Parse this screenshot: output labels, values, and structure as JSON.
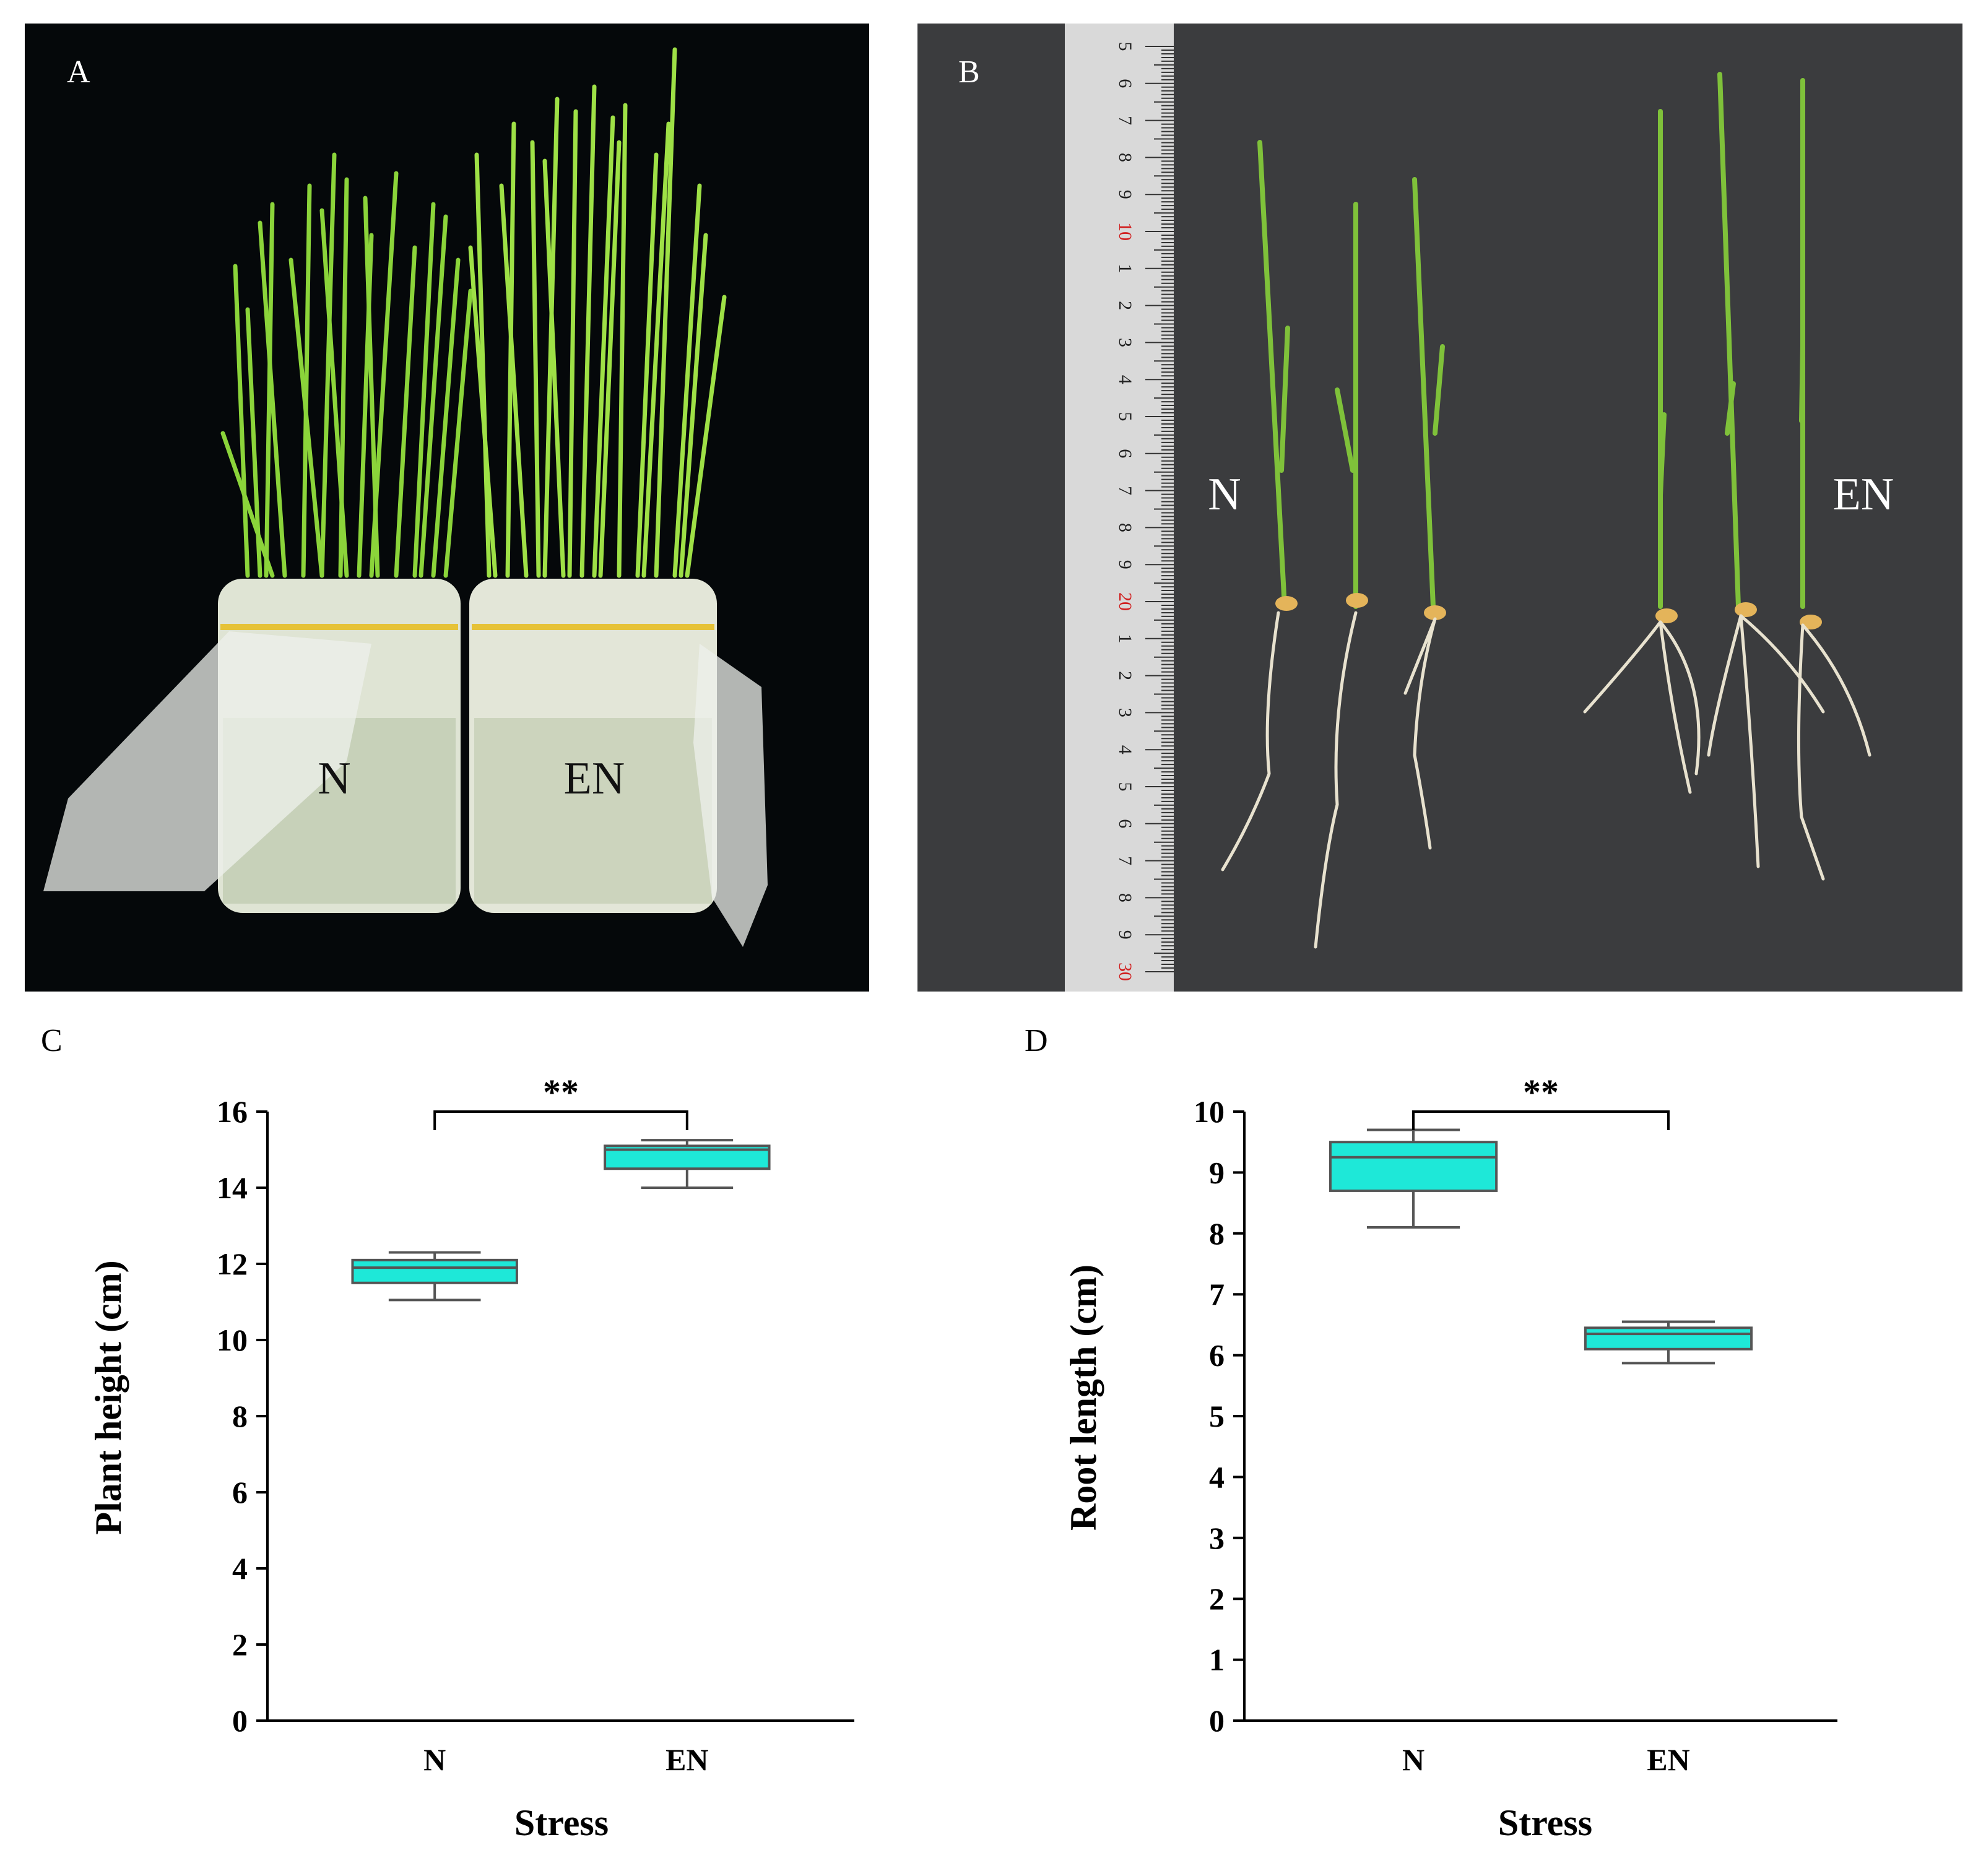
{
  "panels": {
    "A": {
      "letter": "A",
      "pot_labels": [
        "N",
        "EN"
      ]
    },
    "B": {
      "letter": "B",
      "group_labels": [
        "N",
        "EN"
      ],
      "ruler_labels": [
        "5",
        "6",
        "7",
        "8",
        "9",
        "10",
        "1",
        "2",
        "3",
        "4",
        "5",
        "6",
        "7",
        "8",
        "9",
        "20",
        "1",
        "2",
        "3",
        "4",
        "5",
        "6",
        "7",
        "8",
        "9",
        "30"
      ]
    },
    "C": {
      "letter": "C"
    },
    "D": {
      "letter": "D"
    }
  },
  "colors": {
    "box_fill": "#1ee8d8",
    "box_stroke": "#555555",
    "axis": "#000000",
    "photo_bg_A": "#05080a",
    "photo_bg_B": "#3b3c3e",
    "leaf": "#8bd43a",
    "ruler": "#d9d9d9"
  },
  "chart_data": [
    {
      "type": "box",
      "panel": "C",
      "title": "",
      "xlabel": "Stress",
      "ylabel": "Plant height (cm)",
      "categories": [
        "N",
        "EN"
      ],
      "ylim": [
        0,
        16
      ],
      "yticks": [
        0,
        2,
        4,
        6,
        8,
        10,
        12,
        14,
        16
      ],
      "boxes": [
        {
          "name": "N",
          "min": 11.05,
          "q1": 11.5,
          "median": 11.9,
          "q3": 12.1,
          "max": 12.3
        },
        {
          "name": "EN",
          "min": 14.0,
          "q1": 14.5,
          "median": 15.0,
          "q3": 15.1,
          "max": 15.25
        }
      ],
      "significance": {
        "text": "**",
        "between": [
          "N",
          "EN"
        ]
      }
    },
    {
      "type": "box",
      "panel": "D",
      "title": "",
      "xlabel": "Stress",
      "ylabel": "Root length (cm)",
      "categories": [
        "N",
        "EN"
      ],
      "ylim": [
        0,
        10
      ],
      "yticks": [
        0,
        1,
        2,
        3,
        4,
        5,
        6,
        7,
        8,
        9,
        10
      ],
      "boxes": [
        {
          "name": "N",
          "min": 8.1,
          "q1": 8.7,
          "median": 9.25,
          "q3": 9.5,
          "max": 9.7
        },
        {
          "name": "EN",
          "min": 5.87,
          "q1": 6.1,
          "median": 6.35,
          "q3": 6.45,
          "max": 6.55
        }
      ],
      "significance": {
        "text": "**",
        "between": [
          "N",
          "EN"
        ]
      }
    }
  ]
}
